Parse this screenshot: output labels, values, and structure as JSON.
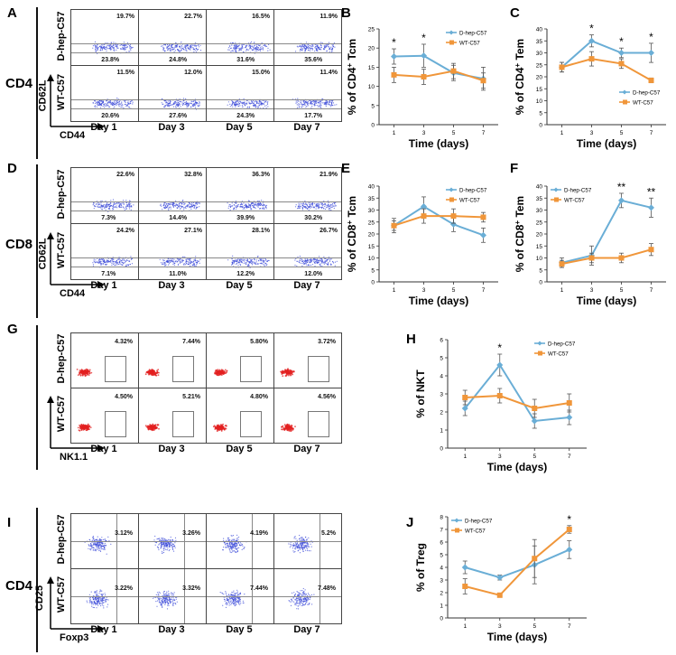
{
  "panel_letters": {
    "A": "A",
    "B": "B",
    "C": "C",
    "D": "D",
    "E": "E",
    "F": "F",
    "G": "G",
    "H": "H",
    "I": "I",
    "J": "J"
  },
  "row_labels": {
    "cd4_top": "CD4",
    "cd8": "CD8",
    "cd4_bottom": "CD4"
  },
  "flow": {
    "group_labels": {
      "dhep": "D-hep-C57",
      "wt": "WT-C57"
    },
    "days": [
      "Day 1",
      "Day 3",
      "Day 5",
      "Day 7"
    ],
    "A": {
      "x_axis": "CD44",
      "y_axis": "CD62L",
      "dhep_upper": [
        "19.7%",
        "22.7%",
        "16.5%",
        "11.9%"
      ],
      "dhep_lower": [
        "23.8%",
        "24.8%",
        "31.6%",
        "35.6%"
      ],
      "wt_upper": [
        "11.5%",
        "12.0%",
        "15.0%",
        "11.4%"
      ],
      "wt_lower": [
        "20.6%",
        "27.6%",
        "24.3%",
        "17.7%"
      ]
    },
    "D": {
      "x_axis": "CD44",
      "y_axis": "CD62L",
      "dhep_upper": [
        "22.6%",
        "32.8%",
        "36.3%",
        "21.9%"
      ],
      "dhep_lower": [
        "7.3%",
        "14.4%",
        "39.9%",
        "30.2%"
      ],
      "wt_upper": [
        "24.2%",
        "27.1%",
        "28.1%",
        "26.7%"
      ],
      "wt_lower": [
        "7.1%",
        "11.0%",
        "12.2%",
        "12.0%"
      ]
    },
    "G": {
      "x_axis": "NK1.1",
      "dhep": [
        "4.32%",
        "7.44%",
        "5.80%",
        "3.72%"
      ],
      "wt": [
        "4.50%",
        "5.21%",
        "4.80%",
        "4.56%"
      ]
    },
    "I": {
      "x_axis": "Foxp3",
      "y_axis": "CD25",
      "dhep": [
        "3.12%",
        "3.26%",
        "4.19%",
        "5.2%"
      ],
      "wt": [
        "3.22%",
        "3.32%",
        "7.44%",
        "7.48%"
      ]
    }
  },
  "colors": {
    "dhep": "#6aaed6",
    "wt": "#f0963a",
    "flow_dot": "#3b49d8",
    "nk_dot": "#e32020"
  },
  "chart_data": [
    {
      "id": "B",
      "type": "line",
      "ylabel_main": "% of CD4",
      "ylabel_sup": "+",
      "ylabel_tail": " Tcm",
      "xlabel": "Time (days)",
      "x": [
        1,
        3,
        5,
        7
      ],
      "xticks": [
        "1",
        "3",
        "5",
        "7"
      ],
      "ylim": [
        0,
        25
      ],
      "yticks": [
        "0",
        "5",
        "10",
        "15",
        "20",
        "25"
      ],
      "series": [
        {
          "name": "D-hep-C57",
          "values": [
            17.8,
            18.0,
            13.5,
            12.0
          ],
          "err": [
            2,
            3,
            2,
            3
          ]
        },
        {
          "name": "WT-C57",
          "values": [
            13.0,
            12.5,
            14.0,
            11.5
          ],
          "err": [
            2,
            2,
            2,
            2
          ]
        }
      ],
      "stars": [
        {
          "x": 1,
          "text": "*"
        },
        {
          "x": 3,
          "text": "*"
        }
      ],
      "legend": "top-right"
    },
    {
      "id": "C",
      "type": "line",
      "ylabel_main": "% of CD4",
      "ylabel_sup": "+",
      "ylabel_tail": " Tem",
      "xlabel": "Time (days)",
      "x": [
        1,
        3,
        5,
        7
      ],
      "xticks": [
        "1",
        "3",
        "5",
        "7"
      ],
      "ylim": [
        0,
        40
      ],
      "yticks": [
        "0",
        "5",
        "10",
        "15",
        "20",
        "25",
        "30",
        "35",
        "40"
      ],
      "series": [
        {
          "name": "D-hep-C57",
          "values": [
            24.0,
            35.0,
            30.0,
            30.0
          ],
          "err": [
            2,
            2.5,
            2,
            4
          ]
        },
        {
          "name": "WT-C57",
          "values": [
            24.0,
            27.5,
            25.5,
            18.5
          ],
          "err": [
            2,
            3,
            2,
            1
          ]
        }
      ],
      "stars": [
        {
          "x": 3,
          "text": "*"
        },
        {
          "x": 5,
          "text": "*"
        },
        {
          "x": 7,
          "text": "*"
        }
      ],
      "legend": "bottom-right"
    },
    {
      "id": "E",
      "type": "line",
      "ylabel_main": "% of CD8",
      "ylabel_sup": "+",
      "ylabel_tail": " Tcm",
      "xlabel": "Time (days)",
      "x": [
        1,
        3,
        5,
        7
      ],
      "xticks": [
        "1",
        "3",
        "5",
        "7"
      ],
      "ylim": [
        0,
        40
      ],
      "yticks": [
        "0",
        "5",
        "10",
        "15",
        "20",
        "25",
        "30",
        "35",
        "40"
      ],
      "series": [
        {
          "name": "D-hep-C57",
          "values": [
            23.5,
            31.5,
            24.0,
            19.5
          ],
          "err": [
            3,
            4,
            3,
            3
          ]
        },
        {
          "name": "WT-C57",
          "values": [
            23.5,
            27.5,
            27.5,
            27.0
          ],
          "err": [
            2,
            3,
            3,
            2
          ]
        }
      ],
      "stars": [],
      "legend": "top-right"
    },
    {
      "id": "F",
      "type": "line",
      "ylabel_main": "% of CD8",
      "ylabel_sup": "+",
      "ylabel_tail": " Tem",
      "xlabel": "Time (days)",
      "x": [
        1,
        3,
        5,
        7
      ],
      "xticks": [
        "1",
        "3",
        "5",
        "7"
      ],
      "ylim": [
        0,
        40
      ],
      "yticks": [
        "0",
        "5",
        "10",
        "15",
        "20",
        "25",
        "30",
        "35",
        "40"
      ],
      "series": [
        {
          "name": "D-hep-C57",
          "values": [
            8.0,
            11.0,
            34.0,
            31.0
          ],
          "err": [
            2,
            4,
            3,
            4
          ]
        },
        {
          "name": "WT-C57",
          "values": [
            7.5,
            10.0,
            10.0,
            13.5
          ],
          "err": [
            1.5,
            2,
            2,
            2.5
          ]
        }
      ],
      "stars": [
        {
          "x": 5,
          "text": "**"
        },
        {
          "x": 7,
          "text": "**"
        }
      ],
      "legend": "top-left"
    },
    {
      "id": "H",
      "type": "line",
      "ylabel_main": "% of NKT",
      "ylabel_sup": "",
      "ylabel_tail": "",
      "xlabel": "Time (days)",
      "x": [
        1,
        3,
        5,
        7
      ],
      "xticks": [
        "1",
        "3",
        "5",
        "7"
      ],
      "ylim": [
        0,
        6
      ],
      "yticks": [
        "0",
        "1",
        "2",
        "3",
        "4",
        "5",
        "6"
      ],
      "series": [
        {
          "name": "D-hep-C57",
          "values": [
            2.2,
            4.6,
            1.5,
            1.7
          ],
          "err": [
            0.4,
            0.6,
            0.4,
            0.4
          ]
        },
        {
          "name": "WT-C57",
          "values": [
            2.8,
            2.9,
            2.2,
            2.5
          ],
          "err": [
            0.4,
            0.4,
            0.5,
            0.5
          ]
        }
      ],
      "stars": [
        {
          "x": 3,
          "text": "*"
        }
      ],
      "legend": "top-right"
    },
    {
      "id": "J",
      "type": "line",
      "ylabel_main": "% of Treg",
      "ylabel_sup": "",
      "ylabel_tail": "",
      "xlabel": "Time (days)",
      "x": [
        1,
        3,
        5,
        7
      ],
      "xticks": [
        "1",
        "3",
        "5",
        "7"
      ],
      "ylim": [
        0,
        8
      ],
      "yticks": [
        "0",
        "1",
        "2",
        "3",
        "4",
        "5",
        "6",
        "7",
        "8"
      ],
      "series": [
        {
          "name": "D-hep-C57",
          "values": [
            4.0,
            3.2,
            4.2,
            5.4
          ],
          "err": [
            0.5,
            0.2,
            1.5,
            0.7
          ]
        },
        {
          "name": "WT-C57",
          "values": [
            2.5,
            1.8,
            4.7,
            7.0
          ],
          "err": [
            0.6,
            0.1,
            1.5,
            0.3
          ]
        }
      ],
      "stars": [
        {
          "x": 7,
          "text": "*"
        }
      ],
      "legend": "top-left"
    }
  ]
}
